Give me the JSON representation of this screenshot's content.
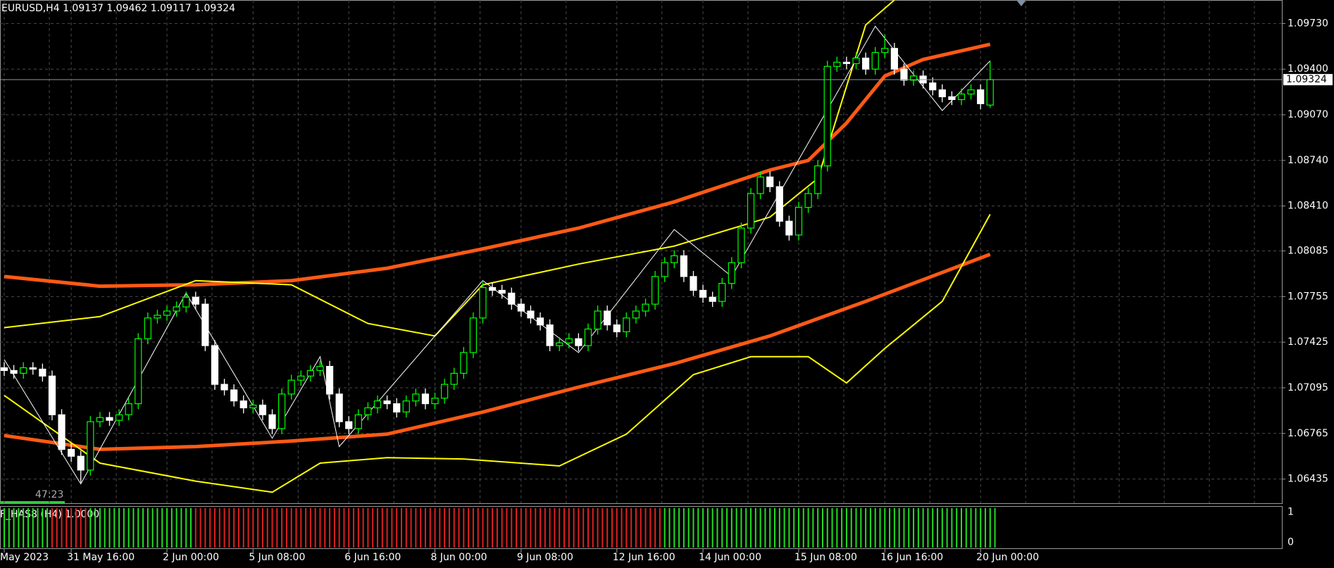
{
  "chart_data": {
    "type": "candlestick",
    "title": "EURUSD,H4  1.09137 1.09462 1.09117 1.09324",
    "ylim": [
      1.0626,
      1.099
    ],
    "yticks": [
      {
        "value": 1.0973,
        "label": "1.09730"
      },
      {
        "value": 1.094,
        "label": "1.09400"
      },
      {
        "value": 1.0907,
        "label": "1.09070"
      },
      {
        "value": 1.0874,
        "label": "1.08740"
      },
      {
        "value": 1.0841,
        "label": "1.08410"
      },
      1.08085,
      1.07755,
      1.07425,
      {
        "value": 1.07095,
        "label": "1.07095"
      },
      1.06765,
      1.06435
    ],
    "xticks": [
      {
        "value": 0,
        "label": "May 2023"
      },
      {
        "value": 7,
        "label": "31 May 16:00"
      },
      {
        "value": 17,
        "label": "2 Jun 00:00"
      },
      {
        "value": 26,
        "label": "5 Jun 08:00"
      },
      {
        "value": 36,
        "label": "6 Jun 16:00"
      },
      {
        "value": 45,
        "label": "8 Jun 00:00"
      },
      {
        "value": 54,
        "label": "9 Jun 08:00"
      },
      {
        "value": 64,
        "label": "12 Jun 16:00"
      },
      {
        "value": 73,
        "label": "14 Jun 00:00"
      },
      {
        "value": 83,
        "label": "15 Jun 08:00"
      },
      {
        "value": 92,
        "label": "16 Jun 16:00"
      },
      {
        "value": 102,
        "label": "20 Jun 00:00"
      }
    ],
    "current_price": 1.09324,
    "timer": "47:23",
    "up_color": "#00ff00",
    "down_color": "#ffffff",
    "open": [
      1.0724,
      1.0722,
      1.072,
      1.0724,
      1.0723,
      1.0718,
      1.069,
      1.0665,
      1.066,
      1.065,
      1.0685,
      1.0688,
      1.0686,
      1.069,
      1.0698,
      1.0745,
      1.076,
      1.0762,
      1.0765,
      1.0768,
      1.0775,
      1.077,
      1.074,
      1.0712,
      1.0708,
      1.07,
      1.0695,
      1.0697,
      1.069,
      1.068,
      1.0705,
      1.0715,
      1.0718,
      1.0722,
      1.0725,
      1.0705,
      1.0685,
      1.068,
      1.069,
      1.0695,
      1.07,
      1.0698,
      1.0692,
      1.07,
      1.0705,
      1.0698,
      1.0702,
      1.0712,
      1.072,
      1.0735,
      1.076,
      1.0782,
      1.078,
      1.0778,
      1.077,
      1.0765,
      1.076,
      1.0755,
      1.074,
      1.0742,
      1.0745,
      1.074,
      1.0752,
      1.0765,
      1.0755,
      1.075,
      1.076,
      1.0765,
      1.077,
      1.079,
      1.08,
      1.0805,
      1.079,
      1.078,
      1.0775,
      1.0772,
      1.0785,
      1.08,
      1.0825,
      1.085,
      1.0862,
      1.0855,
      1.083,
      1.082,
      1.084,
      1.085,
      1.087,
      1.0942,
      1.0945,
      1.0944,
      1.0948,
      1.094,
      1.0952,
      1.0955,
      1.094,
      1.0932,
      1.0935,
      1.093,
      1.0925,
      1.092,
      1.0918,
      1.0922,
      1.0925,
      1.0914
    ],
    "high": [
      1.0728,
      1.0726,
      1.0728,
      1.0728,
      1.0727,
      1.0722,
      1.0694,
      1.0669,
      1.0664,
      1.0689,
      1.0692,
      1.0692,
      1.0694,
      1.0702,
      1.0749,
      1.0764,
      1.0766,
      1.0769,
      1.0772,
      1.0779,
      1.0779,
      1.0774,
      1.0744,
      1.0716,
      1.0712,
      1.0704,
      1.0701,
      1.0701,
      1.0694,
      1.0709,
      1.0719,
      1.0722,
      1.0726,
      1.0729,
      1.0729,
      1.0709,
      1.0689,
      1.0694,
      1.0699,
      1.0704,
      1.0704,
      1.0702,
      1.0704,
      1.0709,
      1.0709,
      1.0706,
      1.0716,
      1.0724,
      1.0739,
      1.0764,
      1.0786,
      1.0786,
      1.0784,
      1.0782,
      1.0774,
      1.0769,
      1.0764,
      1.0759,
      1.0746,
      1.0749,
      1.0749,
      1.0756,
      1.0769,
      1.0769,
      1.0759,
      1.0764,
      1.0769,
      1.0774,
      1.0794,
      1.0804,
      1.0809,
      1.0809,
      1.0794,
      1.0784,
      1.0779,
      1.0789,
      1.0804,
      1.0829,
      1.0854,
      1.0866,
      1.0866,
      1.0859,
      1.0834,
      1.0844,
      1.0854,
      1.0874,
      1.0946,
      1.0949,
      1.0949,
      1.0952,
      1.0952,
      1.0956,
      1.0965,
      1.0959,
      1.0944,
      1.0939,
      1.0939,
      1.0934,
      1.0929,
      1.0924,
      1.0926,
      1.0929,
      1.0929,
      1.0946
    ],
    "low": [
      1.0718,
      1.0716,
      1.0716,
      1.0719,
      1.0714,
      1.0686,
      1.0661,
      1.0656,
      1.0641,
      1.0646,
      1.0681,
      1.0682,
      1.0682,
      1.0686,
      1.0694,
      1.0741,
      1.0756,
      1.0758,
      1.0761,
      1.0764,
      1.0766,
      1.0736,
      1.0708,
      1.0704,
      1.0696,
      1.0691,
      1.0691,
      1.0686,
      1.0676,
      1.0676,
      1.0701,
      1.0711,
      1.0714,
      1.0718,
      1.0701,
      1.0681,
      1.0676,
      1.0676,
      1.0686,
      1.0691,
      1.0694,
      1.0688,
      1.0688,
      1.0696,
      1.0694,
      1.0694,
      1.0698,
      1.0708,
      1.0716,
      1.0731,
      1.0756,
      1.0776,
      1.0774,
      1.0766,
      1.0761,
      1.0756,
      1.0751,
      1.0736,
      1.0736,
      1.0738,
      1.0736,
      1.0736,
      1.0748,
      1.0751,
      1.0746,
      1.0746,
      1.0756,
      1.0761,
      1.0766,
      1.0786,
      1.0796,
      1.0786,
      1.0776,
      1.0771,
      1.0768,
      1.0768,
      1.0781,
      1.0796,
      1.0821,
      1.0846,
      1.0851,
      1.0826,
      1.0816,
      1.0816,
      1.0836,
      1.0846,
      1.0866,
      1.0938,
      1.094,
      1.094,
      1.0936,
      1.0936,
      1.0948,
      1.0936,
      1.0928,
      1.0928,
      1.0926,
      1.0921,
      1.0916,
      1.0914,
      1.0914,
      1.0918,
      1.0911,
      1.0912
    ],
    "close": [
      1.0722,
      1.072,
      1.0724,
      1.0723,
      1.0718,
      1.069,
      1.0665,
      1.066,
      1.065,
      1.0685,
      1.0688,
      1.0686,
      1.069,
      1.0698,
      1.0745,
      1.076,
      1.0762,
      1.0765,
      1.0768,
      1.0775,
      1.077,
      1.074,
      1.0712,
      1.0708,
      1.07,
      1.0695,
      1.0697,
      1.069,
      1.068,
      1.0705,
      1.0715,
      1.0718,
      1.0722,
      1.0725,
      1.0705,
      1.0685,
      1.068,
      1.069,
      1.0695,
      1.07,
      1.0698,
      1.0692,
      1.07,
      1.0705,
      1.0698,
      1.0702,
      1.0712,
      1.072,
      1.0735,
      1.076,
      1.0782,
      1.078,
      1.0778,
      1.077,
      1.0765,
      1.076,
      1.0755,
      1.074,
      1.0742,
      1.0745,
      1.074,
      1.0752,
      1.0765,
      1.0755,
      1.075,
      1.076,
      1.0765,
      1.077,
      1.079,
      1.08,
      1.0805,
      1.079,
      1.078,
      1.0775,
      1.0772,
      1.0785,
      1.08,
      1.0825,
      1.085,
      1.0862,
      1.0855,
      1.083,
      1.082,
      1.084,
      1.085,
      1.087,
      1.0942,
      1.0945,
      1.0944,
      1.0948,
      1.094,
      1.0952,
      1.0955,
      1.094,
      1.0932,
      1.0935,
      1.093,
      1.0925,
      1.092,
      1.0918,
      1.0922,
      1.0925,
      1.0915,
      1.09324
    ],
    "overlays": [
      {
        "color": "#ff5a14",
        "width": 5,
        "x": [
          0,
          10,
          20,
          30,
          40,
          50,
          60,
          70,
          80,
          84,
          88,
          92,
          96,
          103
        ],
        "values": [
          1.079,
          1.0783,
          1.0784,
          1.0787,
          1.0796,
          1.081,
          1.0825,
          1.0844,
          1.0867,
          1.0874,
          1.0901,
          1.0935,
          1.0947,
          1.0958
        ]
      },
      {
        "color": "#ff5a14",
        "width": 5,
        "x": [
          0,
          10,
          20,
          30,
          40,
          50,
          60,
          70,
          80,
          90,
          103
        ],
        "values": [
          1.0675,
          1.0665,
          1.0667,
          1.0671,
          1.0676,
          1.0692,
          1.071,
          1.0727,
          1.0747,
          1.0772,
          1.0806
        ]
      },
      {
        "color": "#ffff00",
        "width": 2,
        "x": [
          0,
          10,
          20,
          30,
          38,
          45,
          50,
          60,
          70,
          80,
          85,
          90,
          93
        ],
        "values": [
          1.0753,
          1.0761,
          1.0787,
          1.0784,
          1.0756,
          1.0747,
          1.0784,
          1.0799,
          1.0812,
          1.0833,
          1.0861,
          1.0972,
          1.099
        ]
      },
      {
        "color": "#ffff00",
        "width": 2,
        "x": [
          0,
          10,
          20,
          28,
          33,
          40,
          48,
          58,
          65,
          72,
          78,
          84,
          88,
          92,
          98,
          103
        ],
        "values": [
          1.0704,
          1.0655,
          1.0642,
          1.0634,
          1.0655,
          1.0659,
          1.0658,
          1.0653,
          1.0676,
          1.0719,
          1.0732,
          1.0732,
          1.0713,
          1.0738,
          1.0772,
          1.0835
        ]
      },
      {
        "color": "#ffffff",
        "width": 1,
        "x": [
          0,
          8,
          19,
          28,
          33,
          35,
          50,
          60,
          70,
          76,
          91,
          98,
          103
        ],
        "values": [
          1.073,
          1.064,
          1.0778,
          1.0673,
          1.0732,
          1.0667,
          1.0787,
          1.0735,
          1.0824,
          1.079,
          1.0971,
          1.091,
          1.0946
        ]
      }
    ],
    "indicator": {
      "label": "F_HAS8 (H4) 1.0000",
      "ylim": [
        -0.2,
        1.2
      ],
      "yticks": [
        1,
        0
      ],
      "directions": "uuuuudddduuuuuuuuuuuddddddddddddddddddddddddddddddddddddddddddddddddd"
    }
  }
}
